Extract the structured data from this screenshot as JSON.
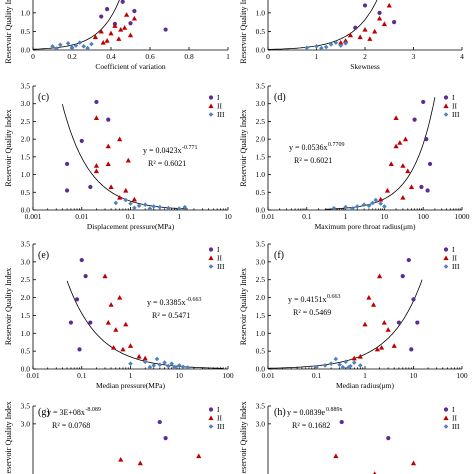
{
  "colors": {
    "I": "#5b2c91",
    "II": "#c00000",
    "III": "#4f81bd"
  },
  "legend": [
    "I",
    "II",
    "III"
  ],
  "ylabel": "Reservoir Quality Index",
  "chart_data": [
    {
      "id": "a",
      "panel_label": "",
      "type": "scatter",
      "xscale": "linear",
      "xlim": [
        0,
        1
      ],
      "ylim": [
        0,
        3.5
      ],
      "xticks": [
        "0",
        "0.2",
        "0.4",
        "0.6",
        "0.8",
        "1"
      ],
      "yticks": [
        "0.0",
        "0.5",
        "1.0",
        "1.5"
      ],
      "xlabel": "Coefficient of variation",
      "equation": "",
      "r2": "",
      "curve": {
        "form": "exp",
        "a": 0.02,
        "b": 9.5
      },
      "series": [
        {
          "name": "I",
          "points": [
            [
              0.38,
              1.1
            ],
            [
              0.42,
              0.7
            ],
            [
              0.46,
              1.3
            ],
            [
              0.5,
              0.72
            ],
            [
              0.52,
              1.05
            ],
            [
              0.35,
              0.9
            ],
            [
              0.68,
              0.55
            ]
          ]
        },
        {
          "name": "II",
          "points": [
            [
              0.32,
              0.35
            ],
            [
              0.35,
              0.5
            ],
            [
              0.38,
              0.25
            ],
            [
              0.4,
              0.45
            ],
            [
              0.42,
              0.65
            ],
            [
              0.44,
              0.3
            ],
            [
              0.45,
              0.55
            ],
            [
              0.47,
              0.6
            ],
            [
              0.5,
              0.4
            ],
            [
              0.52,
              0.85
            ],
            [
              0.48,
              0.95
            ],
            [
              0.36,
              0.2
            ]
          ]
        },
        {
          "name": "III",
          "points": [
            [
              0.1,
              0.1
            ],
            [
              0.14,
              0.14
            ],
            [
              0.18,
              0.18
            ],
            [
              0.2,
              0.07
            ],
            [
              0.22,
              0.12
            ],
            [
              0.24,
              0.2
            ],
            [
              0.26,
              0.1
            ],
            [
              0.28,
              0.05
            ],
            [
              0.3,
              0.16
            ],
            [
              0.2,
              0.05
            ],
            [
              0.12,
              0.04
            ]
          ]
        }
      ]
    },
    {
      "id": "b",
      "panel_label": "",
      "type": "scatter",
      "xscale": "linear",
      "xlim": [
        0,
        4
      ],
      "ylim": [
        0,
        3.5
      ],
      "xticks": [
        "0",
        "1",
        "2",
        "3",
        "4"
      ],
      "yticks": [
        "0.0",
        "0.5",
        "1.0",
        "1.5"
      ],
      "xlabel": "Skewness",
      "equation": "",
      "r2": "",
      "curve": {
        "form": "exp",
        "a": 0.015,
        "b": 2.0
      },
      "series": [
        {
          "name": "I",
          "points": [
            [
              2.3,
              1.0
            ],
            [
              2.6,
              0.75
            ],
            [
              1.8,
              0.6
            ],
            [
              2.0,
              1.2
            ],
            [
              2.5,
              1.45
            ]
          ]
        },
        {
          "name": "II",
          "points": [
            [
              1.5,
              0.2
            ],
            [
              1.7,
              0.4
            ],
            [
              1.9,
              0.35
            ],
            [
              2.0,
              0.55
            ],
            [
              2.2,
              0.5
            ],
            [
              2.4,
              0.7
            ],
            [
              2.3,
              0.85
            ],
            [
              1.6,
              0.25
            ],
            [
              2.1,
              0.3
            ],
            [
              2.5,
              1.2
            ]
          ]
        },
        {
          "name": "III",
          "points": [
            [
              1.0,
              0.1
            ],
            [
              1.2,
              0.08
            ],
            [
              1.3,
              0.15
            ],
            [
              1.4,
              0.2
            ],
            [
              1.5,
              0.12
            ],
            [
              1.1,
              0.05
            ],
            [
              1.6,
              0.18
            ],
            [
              0.8,
              0.06
            ]
          ]
        }
      ]
    },
    {
      "id": "c",
      "panel_label": "(c)",
      "type": "scatter",
      "xscale": "log",
      "xlim": [
        0.001,
        10
      ],
      "ylim": [
        0,
        3.5
      ],
      "xticks": [
        "0.001",
        "0.01",
        "0.1",
        "1",
        "10"
      ],
      "yticks": [
        "0.0",
        "0.5",
        "1.0",
        "1.5",
        "2.0",
        "2.5",
        "3.0",
        "3.5"
      ],
      "xlabel": "Displacement pressure(MPa)",
      "equation": "y = 0.0423x",
      "exponent": "-0.771",
      "r2": "R² = 0.6021",
      "curve": {
        "form": "pow",
        "a": 0.0423,
        "b": -0.771,
        "xmin": 0.004,
        "xmax": 1.5
      },
      "series": [
        {
          "name": "I",
          "points": [
            [
              0.005,
              1.3
            ],
            [
              0.01,
              1.95
            ],
            [
              0.02,
              3.05
            ],
            [
              0.035,
              2.55
            ],
            [
              0.005,
              0.55
            ],
            [
              0.015,
              0.65
            ]
          ]
        },
        {
          "name": "II",
          "points": [
            [
              0.02,
              2.6
            ],
            [
              0.02,
              1.25
            ],
            [
              0.02,
              1.1
            ],
            [
              0.035,
              1.8
            ],
            [
              0.035,
              1.3
            ],
            [
              0.04,
              0.65
            ],
            [
              0.06,
              2.0
            ],
            [
              0.08,
              0.55
            ],
            [
              0.09,
              1.4
            ],
            [
              0.06,
              0.35
            ],
            [
              0.12,
              0.3
            ]
          ]
        },
        {
          "name": "III",
          "points": [
            [
              0.05,
              0.2
            ],
            [
              0.08,
              0.28
            ],
            [
              0.1,
              0.18
            ],
            [
              0.15,
              0.12
            ],
            [
              0.2,
              0.15
            ],
            [
              0.3,
              0.1
            ],
            [
              0.4,
              0.08
            ],
            [
              0.6,
              0.05
            ],
            [
              1.0,
              0.04
            ],
            [
              1.3,
              0.08
            ],
            [
              0.12,
              0.06
            ],
            [
              0.25,
              0.04
            ]
          ]
        }
      ]
    },
    {
      "id": "d",
      "panel_label": "(d)",
      "type": "scatter",
      "xscale": "log",
      "xlim": [
        0.01,
        1000
      ],
      "ylim": [
        0,
        3.5
      ],
      "xticks": [
        "0.01",
        "0.1",
        "1",
        "10",
        "100",
        "1000"
      ],
      "yticks": [
        "0.0",
        "0.5",
        "1.0",
        "1.5",
        "2.0",
        "2.5",
        "3.0",
        "3.5"
      ],
      "xlabel": "Maximum pore throat radius(μm)",
      "equation": "y = 0.0536x",
      "exponent": "0.7709",
      "r2": "R² = 0.6021",
      "curve": {
        "form": "pow",
        "a": 0.0536,
        "b": 0.7709,
        "xmin": 0.3,
        "xmax": 200
      },
      "series": [
        {
          "name": "I",
          "points": [
            [
              100,
              3.05
            ],
            [
              120,
              2.0
            ],
            [
              150,
              1.3
            ],
            [
              60,
              2.55
            ],
            [
              130,
              0.55
            ],
            [
              90,
              0.65
            ]
          ]
        },
        {
          "name": "II",
          "points": [
            [
              20,
              2.6
            ],
            [
              25,
              1.9
            ],
            [
              30,
              1.25
            ],
            [
              40,
              1.1
            ],
            [
              20,
              1.8
            ],
            [
              15,
              1.3
            ],
            [
              50,
              0.65
            ],
            [
              35,
              2.0
            ],
            [
              12,
              0.55
            ],
            [
              30,
              0.35
            ],
            [
              8,
              0.3
            ]
          ]
        },
        {
          "name": "III",
          "points": [
            [
              0.5,
              0.05
            ],
            [
              1,
              0.08
            ],
            [
              2,
              0.1
            ],
            [
              3,
              0.15
            ],
            [
              5,
              0.2
            ],
            [
              4,
              0.12
            ],
            [
              6,
              0.28
            ],
            [
              1.5,
              0.04
            ],
            [
              8,
              0.18
            ],
            [
              10,
              0.1
            ]
          ]
        }
      ]
    },
    {
      "id": "e",
      "panel_label": "(e)",
      "type": "scatter",
      "xscale": "log",
      "xlim": [
        0.01,
        100
      ],
      "ylim": [
        0,
        3.5
      ],
      "xticks": [
        "0.01",
        "0.1",
        "1",
        "10",
        "100"
      ],
      "yticks": [
        "0.0",
        "0.5",
        "1.0",
        "1.5",
        "2.0",
        "2.5",
        "3.0",
        "3.5"
      ],
      "xlabel": "Median pressure(MPa)",
      "equation": "y = 0.3385x",
      "exponent": "-0.663",
      "r2": "R² = 0.5471",
      "curve": {
        "form": "pow",
        "a": 0.3385,
        "b": -0.663,
        "xmin": 0.05,
        "xmax": 80
      },
      "series": [
        {
          "name": "I",
          "points": [
            [
              0.1,
              3.05
            ],
            [
              0.12,
              2.6
            ],
            [
              0.08,
              1.95
            ],
            [
              0.15,
              1.3
            ],
            [
              0.06,
              1.3
            ],
            [
              0.09,
              0.55
            ]
          ]
        },
        {
          "name": "II",
          "points": [
            [
              0.3,
              2.6
            ],
            [
              0.4,
              1.8
            ],
            [
              0.35,
              1.3
            ],
            [
              0.5,
              1.1
            ],
            [
              0.6,
              2.0
            ],
            [
              0.8,
              1.25
            ],
            [
              1,
              0.65
            ],
            [
              0.7,
              0.55
            ],
            [
              1.5,
              0.35
            ],
            [
              2,
              0.3
            ],
            [
              0.45,
              0.6
            ]
          ]
        },
        {
          "name": "III",
          "points": [
            [
              1,
              0.15
            ],
            [
              2,
              0.2
            ],
            [
              3,
              0.1
            ],
            [
              4,
              0.12
            ],
            [
              5,
              0.18
            ],
            [
              6,
              0.08
            ],
            [
              8,
              0.05
            ],
            [
              10,
              0.1
            ],
            [
              15,
              0.04
            ],
            [
              3.5,
              0.28
            ],
            [
              2.5,
              0.05
            ],
            [
              7,
              0.15
            ],
            [
              12,
              0.06
            ]
          ]
        }
      ]
    },
    {
      "id": "f",
      "panel_label": "(f)",
      "type": "scatter",
      "xscale": "log",
      "xlim": [
        0.01,
        100
      ],
      "ylim": [
        0,
        3.5
      ],
      "xticks": [
        "0.01",
        "0.1",
        "1",
        "10",
        "100"
      ],
      "yticks": [
        "0.0",
        "0.5",
        "1.0",
        "1.5",
        "2.0",
        "2.5",
        "3.0",
        "3.5"
      ],
      "xlabel": "Median radius(μm)",
      "equation": "y = 0.4151x",
      "exponent": "0.663",
      "r2": "R² = 0.5469",
      "curve": {
        "form": "pow",
        "a": 0.4151,
        "b": 0.663,
        "xmin": 0.01,
        "xmax": 15
      },
      "series": [
        {
          "name": "I",
          "points": [
            [
              8,
              3.05
            ],
            [
              6,
              2.6
            ],
            [
              10,
              1.95
            ],
            [
              5,
              1.3
            ],
            [
              12,
              1.3
            ],
            [
              9,
              0.55
            ]
          ]
        },
        {
          "name": "II",
          "points": [
            [
              2,
              2.6
            ],
            [
              1.5,
              1.8
            ],
            [
              2.5,
              1.3
            ],
            [
              3,
              1.1
            ],
            [
              1.2,
              2.0
            ],
            [
              1,
              1.25
            ],
            [
              4,
              0.65
            ],
            [
              1.8,
              0.55
            ],
            [
              0.8,
              0.35
            ],
            [
              0.6,
              0.3
            ],
            [
              2.2,
              0.6
            ]
          ]
        },
        {
          "name": "III",
          "points": [
            [
              0.1,
              0.05
            ],
            [
              0.15,
              0.1
            ],
            [
              0.2,
              0.15
            ],
            [
              0.3,
              0.12
            ],
            [
              0.4,
              0.2
            ],
            [
              0.5,
              0.08
            ],
            [
              0.6,
              0.18
            ],
            [
              0.25,
              0.28
            ],
            [
              0.35,
              0.05
            ],
            [
              0.8,
              0.1
            ],
            [
              0.45,
              0.04
            ]
          ]
        }
      ]
    },
    {
      "id": "g",
      "panel_label": "(g)",
      "type": "scatter",
      "xscale": "linear",
      "xlim": [
        0,
        10
      ],
      "ylim": [
        0,
        3.5
      ],
      "xticks": [],
      "yticks": [
        "3.0",
        "3.5"
      ],
      "xlabel": "",
      "equation": "y = 3E+08x",
      "exponent": "-8.089",
      "r2": "R² = 0.0768",
      "curve": null,
      "series": [
        {
          "name": "I",
          "points": [
            [
              6.5,
              3.05
            ],
            [
              6.8,
              2.6
            ]
          ]
        },
        {
          "name": "II",
          "points": [
            [
              4.5,
              2.0
            ],
            [
              8.5,
              2.1
            ],
            [
              5.5,
              1.9
            ]
          ]
        },
        {
          "name": "III",
          "points": []
        }
      ]
    },
    {
      "id": "h",
      "panel_label": "(h)",
      "type": "scatter",
      "xscale": "linear",
      "xlim": [
        0,
        10
      ],
      "ylim": [
        0,
        3.5
      ],
      "xticks": [],
      "yticks": [
        "3.0",
        "3.5"
      ],
      "xlabel": "",
      "equation": "y = 0.0839e",
      "exponent": "0.889x",
      "r2": "R² = 0.1682",
      "curve": null,
      "series": [
        {
          "name": "I",
          "points": [
            [
              3.8,
              3.05
            ],
            [
              6.2,
              2.6
            ]
          ]
        },
        {
          "name": "II",
          "points": [
            [
              3.5,
              2.1
            ],
            [
              7.5,
              1.9
            ],
            [
              5.5,
              1.6
            ]
          ]
        },
        {
          "name": "III",
          "points": []
        }
      ]
    }
  ]
}
